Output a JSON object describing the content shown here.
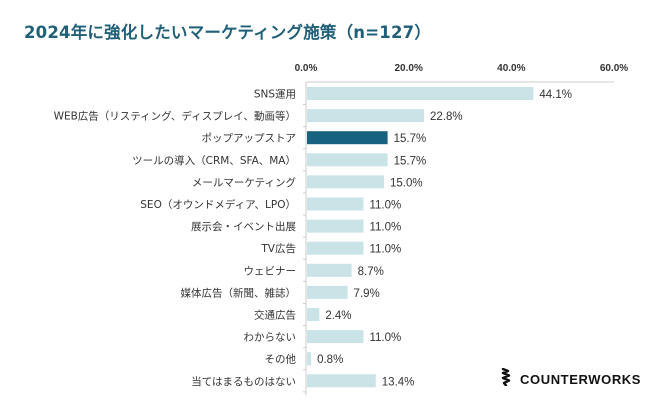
{
  "title": "2024年に強化したいマーケティング施策（n=127）",
  "brand": {
    "logo_icon": "counterworks-spiral-icon",
    "name": "COUNTERWORKS"
  },
  "colors": {
    "title": "#1f5f78",
    "bar_default": "#c9e3e7",
    "bar_highlight": "#17627e",
    "axis": "#cccccc",
    "text": "#333333"
  },
  "chart_data": {
    "type": "bar",
    "orientation": "horizontal",
    "title": "2024年に強化したいマーケティング施策（n=127）",
    "xlabel": "",
    "ylabel": "",
    "xlim": [
      0,
      60
    ],
    "x_ticks": [
      0,
      20,
      40,
      60
    ],
    "x_tick_labels": [
      "0.0%",
      "20.0%",
      "40.0%",
      "60.0%"
    ],
    "x_axis_position": "top",
    "grid": false,
    "legend": "none",
    "categories": [
      "SNS運用",
      "WEB広告（リスティング、ディスプレイ、動画等）",
      "ポップアップストア",
      "ツールの導入（CRM、SFA、MA）",
      "メールマーケティング",
      "SEO（オウンドメディア、LPO）",
      "展示会・イベント出展",
      "TV広告",
      "ウェビナー",
      "媒体広告（新聞、雑誌）",
      "交通広告",
      "わからない",
      "その他",
      "当てはまるものはない"
    ],
    "values": [
      44.1,
      22.8,
      15.7,
      15.7,
      15.0,
      11.0,
      11.0,
      11.0,
      8.7,
      7.9,
      2.4,
      11.0,
      0.8,
      13.4
    ],
    "value_labels": [
      "44.1%",
      "22.8%",
      "15.7%",
      "15.7%",
      "15.0%",
      "11.0%",
      "11.0%",
      "11.0%",
      "8.7%",
      "7.9%",
      "2.4%",
      "11.0%",
      "0.8%",
      "13.4%"
    ],
    "highlighted_category": "ポップアップストア",
    "unit": "%"
  }
}
